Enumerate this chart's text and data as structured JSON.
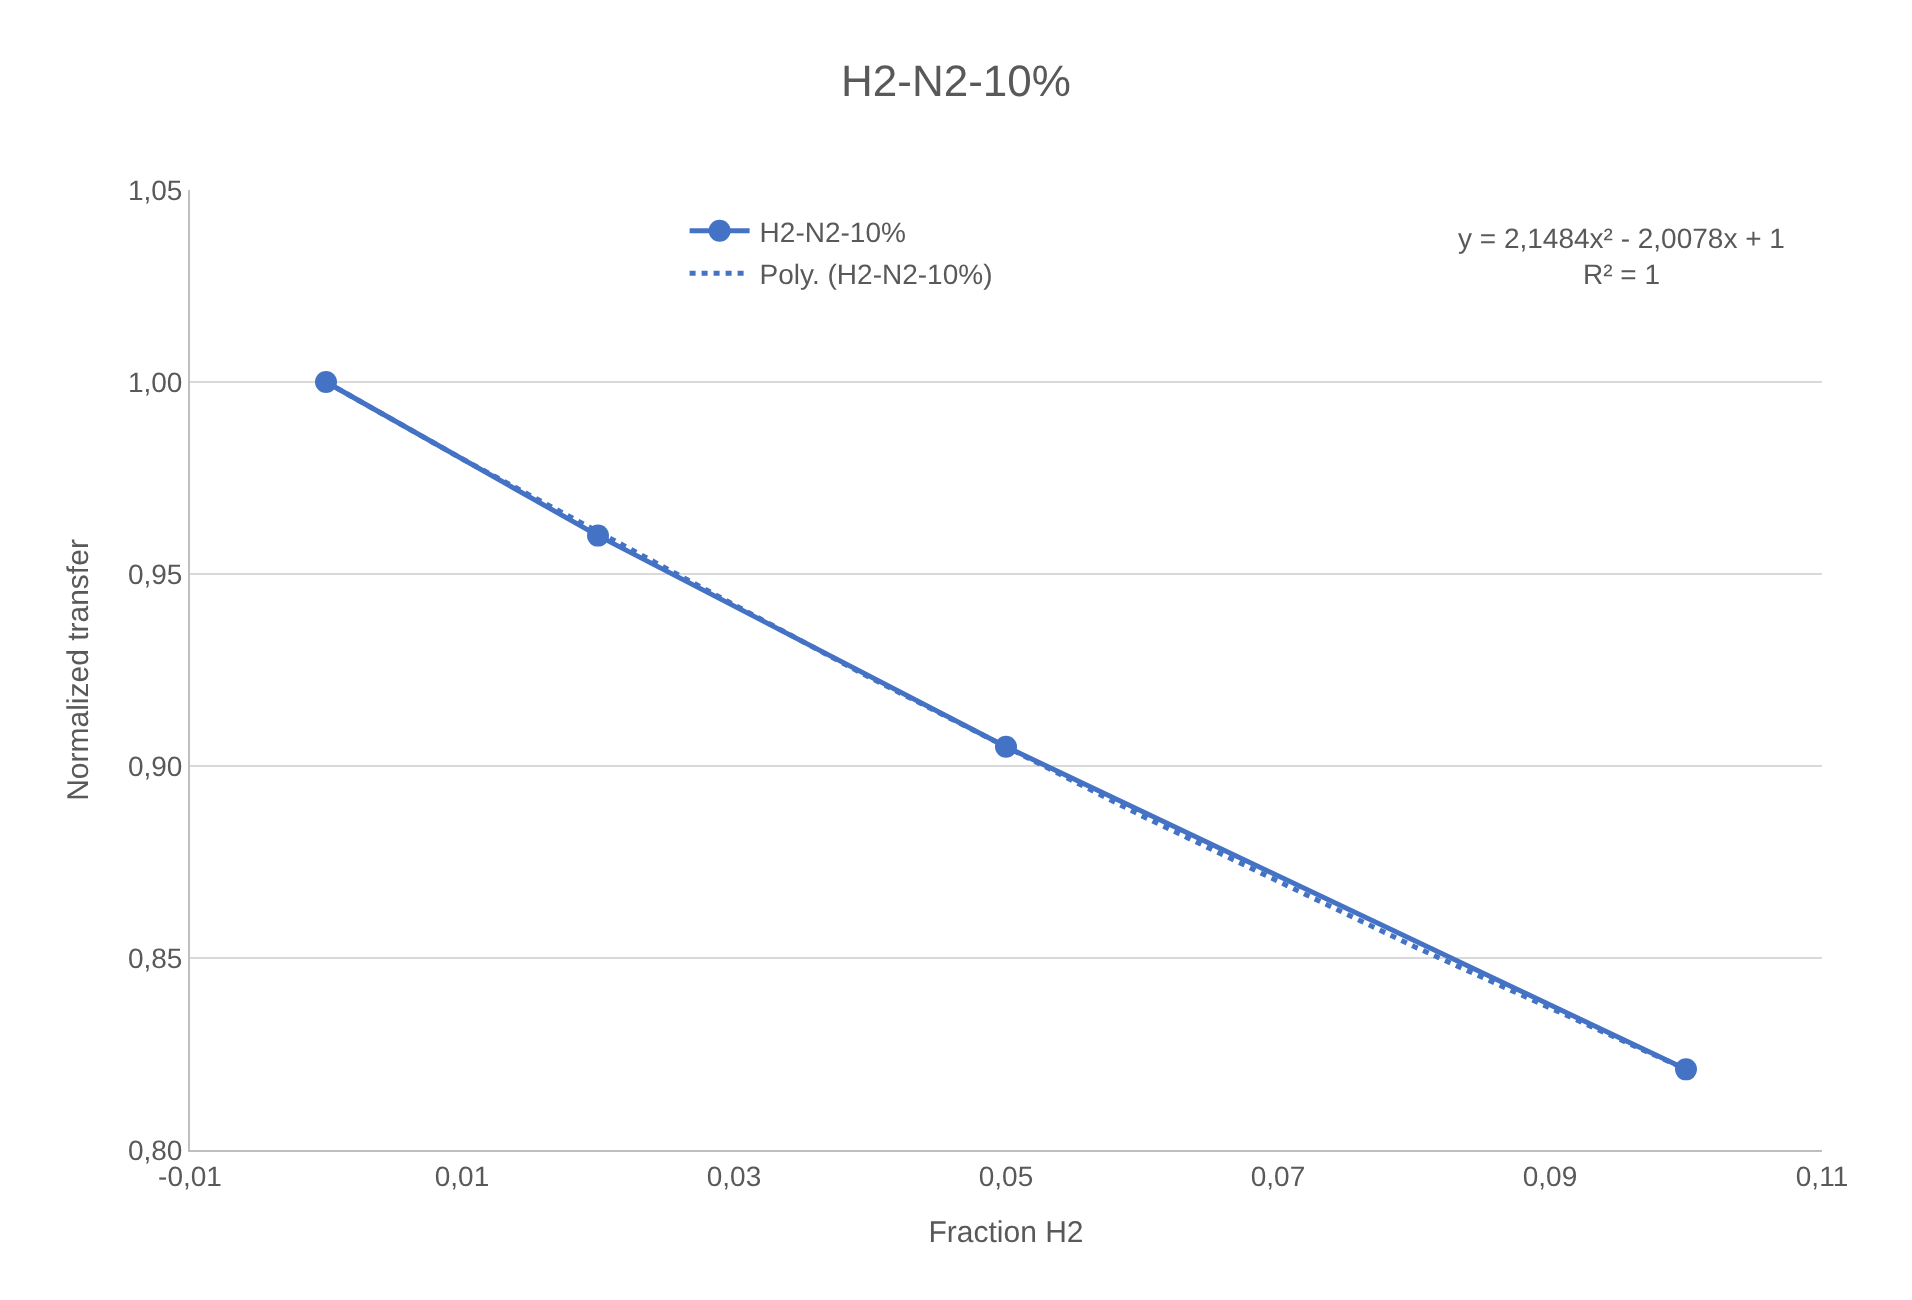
{
  "chart_data": {
    "type": "line",
    "title": "H2-N2-10%",
    "xlabel": "Fraction H2",
    "ylabel": "Normalized transfer",
    "x": [
      0,
      0.02,
      0.05,
      0.1
    ],
    "series": [
      {
        "name": "H2-N2-10%",
        "color": "#4472c4",
        "values": [
          1.0,
          0.96,
          0.905,
          0.821
        ],
        "marker": "circle",
        "line_style": "solid"
      },
      {
        "name": "Poly. (H2-N2-10%)",
        "color": "#4472c4",
        "type": "line",
        "x": [
          0,
          0.01,
          0.02,
          0.03,
          0.04,
          0.05,
          0.06,
          0.07,
          0.08,
          0.09,
          0.1
        ],
        "values": [
          1.0,
          0.98,
          0.961,
          0.942,
          0.923,
          0.905,
          0.887,
          0.87,
          0.853,
          0.837,
          0.821
        ],
        "marker": "none",
        "line_style": "dotted"
      }
    ],
    "annotations": [
      "y = 2,1484x² - 2,0078x + 1\nR² = 1"
    ],
    "xlim": [
      -0.01,
      0.11
    ],
    "xticks": [
      {
        "value": -0.01,
        "label": "-0,01"
      },
      {
        "value": 0.01,
        "label": "0,01"
      },
      {
        "value": 0.03,
        "label": "0,03"
      },
      {
        "value": 0.05,
        "label": "0,05"
      },
      {
        "value": 0.07,
        "label": "0,07"
      },
      {
        "value": 0.09,
        "label": "0,09"
      },
      {
        "value": 0.11,
        "label": "0,11"
      }
    ],
    "ylim": [
      0.8,
      1.05
    ],
    "yticks": [
      {
        "value": 0.8,
        "label": "0,80"
      },
      {
        "value": 0.85,
        "label": "0,85"
      },
      {
        "value": 0.9,
        "label": "0,90"
      },
      {
        "value": 0.95,
        "label": "0,95"
      },
      {
        "value": 1.0,
        "label": "1,00"
      },
      {
        "value": 1.05,
        "label": "1,05"
      }
    ],
    "grid": "y",
    "legend": "top"
  }
}
